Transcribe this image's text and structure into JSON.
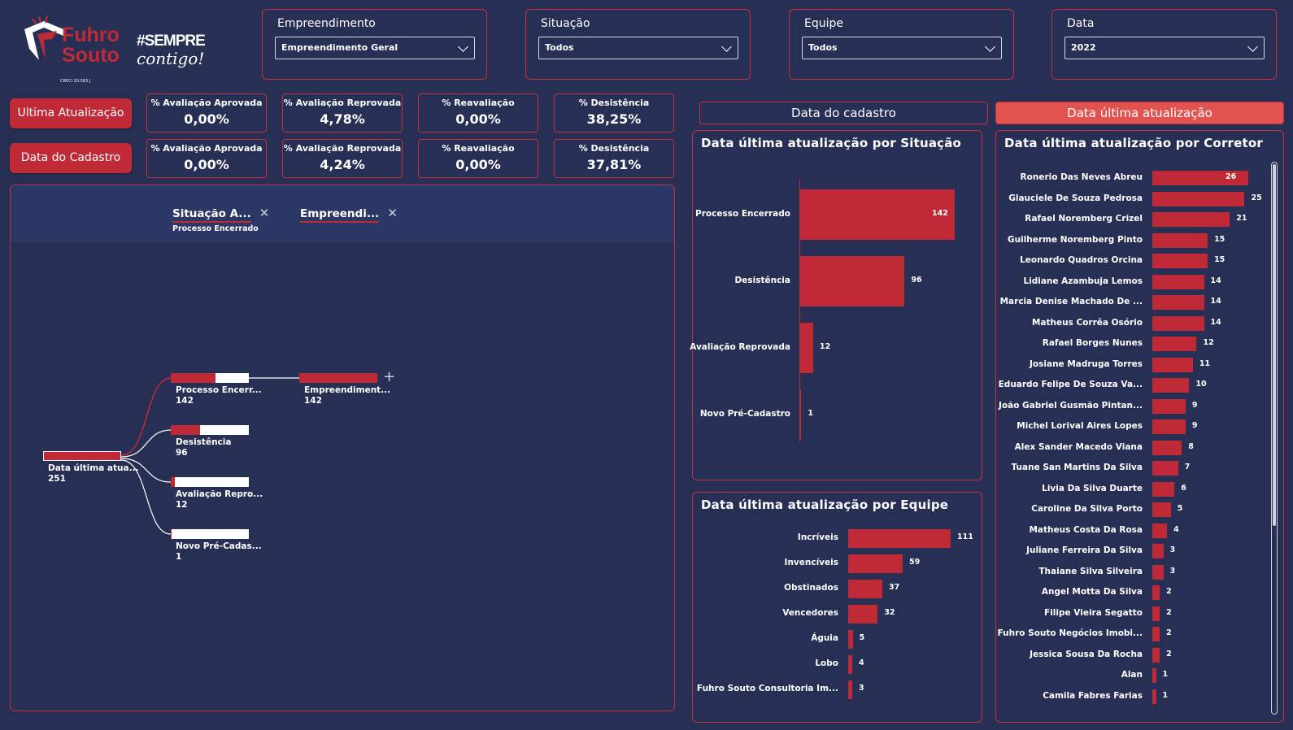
{
  "logo": {
    "brand1": "Fuhro",
    "brand2": "Souto",
    "tagline1": "#SEMPRE",
    "tagline2": "contigo!",
    "creci": "CRECI 20.583 J"
  },
  "filters": [
    {
      "title": "Empreendimento",
      "value": "Empreendimento Geral"
    },
    {
      "title": "Situação",
      "value": "Todos"
    },
    {
      "title": "Equipe",
      "value": "Todos"
    },
    {
      "title": "Data",
      "value": "2022"
    }
  ],
  "buttons": {
    "ultima": "Ultima Atualização",
    "cadastro": "Data do Cadastro"
  },
  "kpis": {
    "row1": [
      {
        "label": "% Avaliação Aprovada",
        "value": "0,00%"
      },
      {
        "label": "% Avaliação Reprovada",
        "value": "4,78%"
      },
      {
        "label": "% Reavaliação",
        "value": "0,00%"
      },
      {
        "label": "% Desistência",
        "value": "38,25%"
      }
    ],
    "row2": [
      {
        "label": "% Avaliação Aprovada",
        "value": "0,00%"
      },
      {
        "label": "% Avaliação Reprovada",
        "value": "4,24%"
      },
      {
        "label": "% Reavaliação",
        "value": "0,00%"
      },
      {
        "label": "% Desistência",
        "value": "37,81%"
      }
    ]
  },
  "tabs": {
    "cadastro": "Data do cadastro",
    "ultima": "Data última atualização"
  },
  "tree": {
    "levels": [
      {
        "title": "Situação A...",
        "subtitle": "Processo Encerrado"
      },
      {
        "title": "Empreendi...",
        "subtitle": ""
      }
    ],
    "root": {
      "label": "Data última atua...",
      "value": "251"
    },
    "children": [
      {
        "label": "Processo Encerr...",
        "value": "142",
        "fill": 0.566
      },
      {
        "label": "Desistência",
        "value": "96",
        "fill": 0.382
      },
      {
        "label": "Avaliação Repro...",
        "value": "12",
        "fill": 0.048
      },
      {
        "label": "Novo Pré-Cadas...",
        "value": "1",
        "fill": 0.004
      }
    ],
    "leaf": {
      "label": "Empreendiment...",
      "value": "142"
    }
  },
  "chart_data": [
    {
      "type": "bar",
      "title": "Data última atualização por Situação",
      "categories": [
        "Processo Encerrado",
        "Desistência",
        "Avaliação Reprovada",
        "Novo Pré-Cadastro"
      ],
      "values": [
        142,
        96,
        12,
        1
      ]
    },
    {
      "type": "bar",
      "title": "Data última atualização por Equipe",
      "categories": [
        "Incríveis",
        "Invencíveis",
        "Obstinados",
        "Vencedores",
        "Águia",
        "Lobo",
        "Fuhro Souto Consultoria Im..."
      ],
      "values": [
        111,
        59,
        37,
        32,
        5,
        4,
        3
      ]
    },
    {
      "type": "bar",
      "title": "Data última atualização por Corretor",
      "categories": [
        "Ronerio Das Neves Abreu",
        "Glauciele De Souza Pedrosa",
        "Rafael Noremberg Crizel",
        "Guilherme Noremberg Pinto",
        "Leonardo Quadros Orcina",
        "Lidiane Azambuja Lemos",
        "Marcia Denise Machado De ...",
        "Matheus Corrêa Osório",
        "Rafael Borges Nunes",
        "Josiane Madruga Torres",
        "Eduardo Felipe De Souza Va...",
        "João Gabriel Gusmão Pintan...",
        "Michel Lorival Aires Lopes",
        "Alex Sander Macedo Viana",
        "Tuane San Martins Da Silva",
        "Livia Da Silva Duarte",
        "Caroline Da Silva Porto",
        "Matheus Costa Da Rosa",
        "Juliane Ferreira Da Silva",
        "Thaiane Silva Silveira",
        "Angel Motta Da Silva",
        "Filipe Vieira Segatto",
        "Fuhro Souto Negócios Imobi...",
        "Jessica Sousa Da Rocha",
        "Alan",
        "Camila Fabres Farias"
      ],
      "values": [
        26,
        25,
        21,
        15,
        15,
        14,
        14,
        14,
        12,
        11,
        10,
        9,
        9,
        8,
        7,
        6,
        5,
        4,
        3,
        3,
        2,
        2,
        2,
        2,
        1,
        1
      ]
    }
  ],
  "colors": {
    "background": "#272f55",
    "accent": "#c02a37",
    "tab_active": "#e0534f"
  }
}
